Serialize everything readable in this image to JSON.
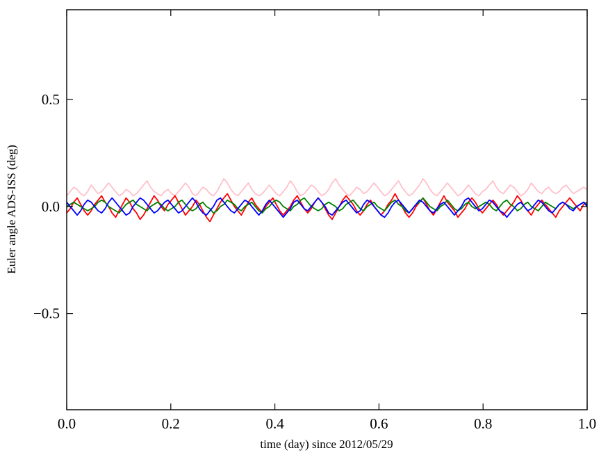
{
  "figure": {
    "background": "#ffffff",
    "frame_color": "#000000"
  },
  "chart_data": {
    "type": "line",
    "title": "",
    "xlabel": "time (day) since 2012/05/29",
    "ylabel": "Euler angle ADS-ISS (deg)",
    "xlim": [
      0.0,
      1.0
    ],
    "ylim": [
      -0.95,
      0.92
    ],
    "grid": false,
    "legend": "none",
    "x_ticks": [
      {
        "value": 0.0,
        "label": "0.0"
      },
      {
        "value": 0.2,
        "label": "0.2"
      },
      {
        "value": 0.4,
        "label": "0.4"
      },
      {
        "value": 0.6,
        "label": "0.6"
      },
      {
        "value": 0.8,
        "label": "0.8"
      },
      {
        "value": 1.0,
        "label": "1.0"
      }
    ],
    "y_ticks": [
      {
        "value": 0.5,
        "label": "0.5"
      },
      {
        "value": 0.0,
        "label": "0.0"
      },
      {
        "value": -0.5,
        "label": "−0.5"
      }
    ],
    "series": [
      {
        "name": "pink-series",
        "color": "#ffc0cb",
        "x_start": 0.0,
        "x_end": 1.0,
        "values": [
          0.05,
          0.07,
          0.09,
          0.08,
          0.06,
          0.05,
          0.07,
          0.1,
          0.08,
          0.06,
          0.07,
          0.09,
          0.11,
          0.09,
          0.07,
          0.05,
          0.06,
          0.08,
          0.07,
          0.05,
          0.06,
          0.08,
          0.1,
          0.12,
          0.09,
          0.07,
          0.06,
          0.05,
          0.07,
          0.08,
          0.06,
          0.05,
          0.07,
          0.09,
          0.11,
          0.09,
          0.06,
          0.05,
          0.07,
          0.09,
          0.08,
          0.06,
          0.05,
          0.07,
          0.1,
          0.13,
          0.11,
          0.08,
          0.06,
          0.05,
          0.07,
          0.09,
          0.11,
          0.08,
          0.06,
          0.05,
          0.06,
          0.08,
          0.1,
          0.08,
          0.06,
          0.05,
          0.07,
          0.09,
          0.12,
          0.1,
          0.07,
          0.05,
          0.06,
          0.08,
          0.1,
          0.09,
          0.07,
          0.05,
          0.06,
          0.08,
          0.11,
          0.13,
          0.1,
          0.08,
          0.06,
          0.05,
          0.07,
          0.09,
          0.08,
          0.06,
          0.07,
          0.09,
          0.11,
          0.09,
          0.07,
          0.05,
          0.06,
          0.08,
          0.1,
          0.12,
          0.09,
          0.07,
          0.05,
          0.06,
          0.08,
          0.1,
          0.13,
          0.11,
          0.08,
          0.06,
          0.05,
          0.07,
          0.09,
          0.11,
          0.09,
          0.07,
          0.05,
          0.06,
          0.08,
          0.1,
          0.08,
          0.06,
          0.05,
          0.07,
          0.08,
          0.1,
          0.12,
          0.09,
          0.07,
          0.06,
          0.08,
          0.1,
          0.09,
          0.07,
          0.05,
          0.06,
          0.08,
          0.11,
          0.09,
          0.07,
          0.06,
          0.08,
          0.09,
          0.07,
          0.06,
          0.07,
          0.09,
          0.1,
          0.08,
          0.06,
          0.07,
          0.08,
          0.09,
          0.08
        ]
      },
      {
        "name": "red-series",
        "color": "#ff0000",
        "x_start": 0.0,
        "x_end": 1.0,
        "values": [
          -0.03,
          -0.01,
          0.02,
          0.04,
          0.01,
          -0.02,
          -0.04,
          -0.02,
          0.01,
          0.03,
          0.05,
          0.02,
          0.0,
          -0.03,
          -0.05,
          -0.02,
          0.01,
          0.04,
          0.02,
          -0.01,
          -0.03,
          -0.06,
          -0.04,
          -0.01,
          0.02,
          0.05,
          0.03,
          0.0,
          -0.02,
          0.01,
          0.03,
          0.05,
          0.02,
          -0.01,
          -0.04,
          -0.02,
          0.0,
          0.03,
          0.01,
          -0.02,
          -0.05,
          -0.07,
          -0.04,
          -0.01,
          0.02,
          0.04,
          0.06,
          0.03,
          0.0,
          -0.02,
          -0.04,
          -0.01,
          0.02,
          0.04,
          0.01,
          -0.01,
          -0.03,
          0.0,
          0.02,
          0.04,
          0.01,
          -0.02,
          -0.04,
          -0.02,
          0.0,
          0.03,
          0.05,
          0.02,
          -0.01,
          -0.03,
          -0.01,
          0.02,
          0.04,
          0.02,
          -0.01,
          -0.04,
          -0.06,
          -0.03,
          0.0,
          0.03,
          0.05,
          0.03,
          0.01,
          -0.02,
          -0.04,
          -0.02,
          0.01,
          0.03,
          0.0,
          -0.02,
          -0.04,
          -0.02,
          0.01,
          0.03,
          0.06,
          0.03,
          0.0,
          -0.03,
          -0.05,
          -0.03,
          0.0,
          0.02,
          0.04,
          0.01,
          -0.02,
          -0.04,
          -0.01,
          0.02,
          0.05,
          0.02,
          0.0,
          -0.02,
          -0.05,
          -0.03,
          -0.01,
          0.02,
          0.04,
          0.02,
          -0.01,
          -0.03,
          -0.01,
          0.01,
          0.03,
          0.01,
          -0.02,
          -0.04,
          -0.02,
          0.0,
          0.02,
          0.05,
          0.03,
          0.0,
          -0.02,
          -0.04,
          -0.01,
          0.01,
          0.03,
          0.01,
          -0.01,
          -0.03,
          -0.05,
          -0.02,
          0.0,
          0.02,
          0.04,
          0.02,
          0.0,
          -0.02,
          0.01,
          0.02
        ]
      },
      {
        "name": "green-series",
        "color": "#008000",
        "x_start": 0.0,
        "x_end": 1.0,
        "values": [
          0.0,
          0.01,
          0.02,
          0.01,
          0.0,
          -0.01,
          -0.02,
          -0.01,
          0.0,
          0.02,
          0.03,
          0.02,
          0.0,
          -0.01,
          -0.02,
          -0.03,
          -0.01,
          0.01,
          0.02,
          0.03,
          0.01,
          0.0,
          -0.01,
          -0.02,
          0.0,
          0.01,
          0.02,
          0.01,
          -0.01,
          -0.02,
          -0.01,
          0.0,
          0.02,
          0.03,
          0.01,
          -0.01,
          -0.02,
          -0.01,
          0.01,
          0.02,
          0.0,
          -0.01,
          -0.03,
          -0.02,
          0.0,
          0.01,
          0.03,
          0.02,
          0.01,
          -0.01,
          -0.02,
          0.0,
          0.01,
          0.02,
          0.0,
          -0.02,
          -0.03,
          -0.01,
          0.0,
          0.02,
          0.03,
          0.02,
          0.0,
          -0.01,
          -0.02,
          0.0,
          0.01,
          0.03,
          0.04,
          0.02,
          0.0,
          -0.01,
          -0.02,
          -0.01,
          0.01,
          0.02,
          0.01,
          0.0,
          -0.02,
          -0.01,
          0.01,
          0.02,
          0.03,
          0.01,
          -0.01,
          -0.02,
          0.0,
          0.01,
          0.02,
          0.0,
          -0.01,
          -0.02,
          0.0,
          0.02,
          0.03,
          0.01,
          0.0,
          -0.02,
          -0.03,
          -0.01,
          0.01,
          0.02,
          0.04,
          0.02,
          0.0,
          -0.01,
          -0.02,
          0.0,
          0.01,
          0.03,
          0.01,
          -0.01,
          -0.02,
          -0.01,
          0.01,
          0.02,
          0.0,
          -0.01,
          0.0,
          0.01,
          0.02,
          0.01,
          -0.01,
          -0.02,
          0.0,
          0.02,
          0.03,
          0.01,
          0.0,
          -0.02,
          -0.01,
          0.01,
          0.02,
          0.0,
          -0.01,
          -0.02,
          0.0,
          0.02,
          0.01,
          0.0,
          -0.01,
          0.01,
          0.02,
          0.01,
          0.0,
          -0.01,
          0.0,
          0.01,
          0.02,
          0.01
        ]
      },
      {
        "name": "blue-series",
        "color": "#0000ff",
        "x_start": 0.0,
        "x_end": 1.0,
        "values": [
          0.02,
          0.0,
          -0.02,
          -0.04,
          -0.02,
          0.01,
          0.03,
          0.02,
          0.0,
          -0.02,
          -0.03,
          -0.01,
          0.02,
          0.04,
          0.02,
          0.0,
          -0.02,
          -0.04,
          -0.03,
          0.0,
          0.02,
          0.04,
          0.03,
          0.01,
          -0.01,
          -0.03,
          -0.02,
          0.0,
          0.02,
          0.03,
          0.01,
          -0.01,
          -0.03,
          -0.02,
          0.0,
          0.02,
          0.04,
          0.02,
          -0.01,
          -0.03,
          -0.04,
          -0.02,
          0.0,
          0.03,
          0.04,
          0.02,
          0.0,
          -0.02,
          -0.03,
          -0.01,
          0.01,
          0.03,
          0.02,
          0.0,
          -0.02,
          -0.04,
          -0.02,
          0.01,
          0.03,
          0.01,
          -0.01,
          -0.03,
          -0.05,
          -0.03,
          -0.01,
          0.02,
          0.03,
          0.01,
          -0.01,
          -0.02,
          0.0,
          0.02,
          0.04,
          0.02,
          0.0,
          -0.03,
          -0.04,
          -0.02,
          0.0,
          0.02,
          0.03,
          0.01,
          -0.01,
          -0.03,
          -0.02,
          0.01,
          0.03,
          0.02,
          0.0,
          -0.02,
          -0.04,
          -0.05,
          -0.03,
          0.0,
          0.02,
          0.03,
          0.01,
          -0.01,
          -0.03,
          -0.01,
          0.01,
          0.03,
          0.02,
          0.0,
          -0.02,
          -0.03,
          -0.01,
          0.01,
          0.02,
          0.0,
          -0.02,
          -0.04,
          -0.02,
          0.0,
          0.03,
          0.04,
          0.02,
          0.0,
          -0.02,
          -0.01,
          0.01,
          0.03,
          0.02,
          0.0,
          -0.02,
          -0.03,
          -0.05,
          -0.03,
          -0.01,
          0.01,
          0.02,
          0.0,
          -0.02,
          -0.01,
          0.01,
          0.03,
          0.02,
          0.0,
          -0.02,
          -0.03,
          -0.01,
          0.01,
          0.02,
          0.01,
          -0.01,
          -0.02,
          0.0,
          0.01,
          0.02,
          0.0
        ]
      }
    ]
  }
}
